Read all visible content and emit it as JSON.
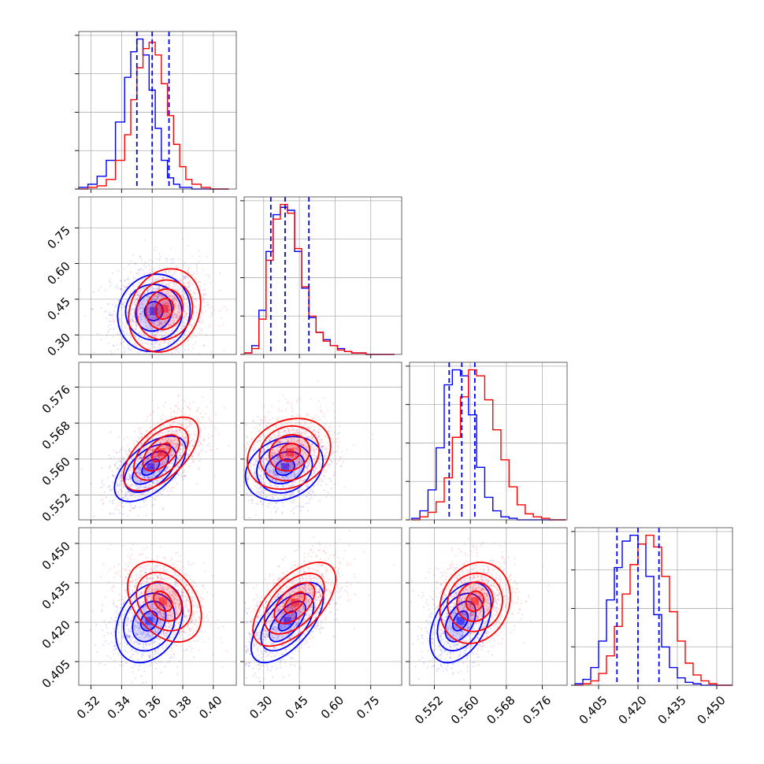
{
  "chart_data": {
    "type": "corner",
    "title": "",
    "grid": true,
    "series": [
      {
        "color": "#0000ff"
      },
      {
        "color": "#ff0000"
      }
    ],
    "params": [
      {
        "range": [
          0.312,
          0.415
        ],
        "ticks": [
          "0.32",
          "0.34",
          "0.36",
          "0.38",
          "0.40"
        ],
        "tick_values": [
          0.32,
          0.34,
          0.36,
          0.38,
          0.4
        ]
      },
      {
        "range": [
          0.218,
          0.88
        ],
        "ticks": [
          "0.30",
          "0.45",
          "0.60",
          "0.75"
        ],
        "tick_values": [
          0.3,
          0.45,
          0.6,
          0.75
        ]
      },
      {
        "range": [
          0.5465,
          0.5815
        ],
        "ticks": [
          "0.552",
          "0.560",
          "0.568",
          "0.576"
        ],
        "tick_values": [
          0.552,
          0.56,
          0.568,
          0.576
        ]
      },
      {
        "range": [
          0.396,
          0.456
        ],
        "ticks": [
          "0.405",
          "0.420",
          "0.435",
          "0.450"
        ],
        "tick_values": [
          0.405,
          0.42,
          0.435,
          0.45
        ]
      }
    ],
    "marginals": [
      {
        "quantiles_series_0": [
          0.35,
          0.36,
          0.371
        ],
        "series": [
          {
            "color": "#0000ff",
            "bins": [
              0.312,
              0.318,
              0.324,
              0.33,
              0.336,
              0.342,
              0.346,
              0.35,
              0.354,
              0.358,
              0.362,
              0.366,
              0.37,
              0.374,
              0.378,
              0.382,
              0.386,
              0.392,
              0.398,
              0.404,
              0.41
            ],
            "counts": [
              1,
              3,
              8,
              18,
              42,
              70,
              86,
              94,
              84,
              62,
              38,
              18,
              7,
              3,
              1,
              1,
              0,
              0,
              0,
              0
            ]
          },
          {
            "color": "#ff0000",
            "bins": [
              0.312,
              0.318,
              0.324,
              0.33,
              0.336,
              0.342,
              0.346,
              0.35,
              0.354,
              0.358,
              0.362,
              0.366,
              0.37,
              0.374,
              0.378,
              0.382,
              0.386,
              0.392,
              0.398,
              0.404,
              0.41
            ],
            "counts": [
              0,
              1,
              2,
              6,
              18,
              34,
              56,
              76,
              88,
              92,
              84,
              66,
              46,
              28,
              14,
              6,
              3,
              1,
              0,
              0
            ]
          }
        ]
      },
      {
        "quantiles_series_0": [
          0.33,
          0.39,
          0.49
        ],
        "series": [
          {
            "color": "#0000ff",
            "bins": [
              0.22,
              0.25,
              0.28,
              0.31,
              0.34,
              0.37,
              0.4,
              0.43,
              0.46,
              0.49,
              0.52,
              0.55,
              0.58,
              0.61,
              0.64,
              0.67,
              0.7,
              0.73,
              0.76,
              0.79,
              0.82,
              0.85
            ],
            "counts": [
              1,
              6,
              30,
              70,
              95,
              100,
              98,
              70,
              45,
              25,
              15,
              10,
              6,
              4,
              2,
              1,
              1,
              0,
              0,
              0,
              0
            ]
          },
          {
            "color": "#ff0000",
            "bins": [
              0.22,
              0.25,
              0.28,
              0.31,
              0.34,
              0.37,
              0.4,
              0.43,
              0.46,
              0.49,
              0.52,
              0.55,
              0.58,
              0.61,
              0.64,
              0.67,
              0.7,
              0.73,
              0.76,
              0.79,
              0.82,
              0.85
            ],
            "counts": [
              1,
              4,
              24,
              64,
              92,
              102,
              96,
              72,
              46,
              26,
              15,
              9,
              6,
              3,
              2,
              1,
              1,
              0,
              0,
              0,
              0
            ]
          }
        ]
      },
      {
        "quantiles_series_0": [
          0.5553,
          0.5581,
          0.561
        ],
        "series": [
          {
            "color": "#0000ff",
            "bins": [
              0.547,
              0.5488,
              0.5506,
              0.5524,
              0.5542,
              0.556,
              0.5578,
              0.5596,
              0.5614,
              0.5632,
              0.565,
              0.5668,
              0.5686,
              0.5704,
              0.5722,
              0.574,
              0.5758,
              0.5776,
              0.5794,
              0.5812
            ],
            "counts": [
              1,
              6,
              20,
              48,
              90,
              100,
              96,
              70,
              35,
              15,
              6,
              2,
              1,
              0,
              0,
              0,
              0,
              0,
              0
            ]
          },
          {
            "color": "#ff0000",
            "bins": [
              0.547,
              0.5488,
              0.5506,
              0.5524,
              0.5542,
              0.556,
              0.5578,
              0.5596,
              0.5614,
              0.5632,
              0.565,
              0.5668,
              0.5686,
              0.5704,
              0.5722,
              0.574,
              0.5758,
              0.5776,
              0.5794,
              0.5812
            ],
            "counts": [
              0,
              2,
              5,
              12,
              28,
              55,
              82,
              100,
              96,
              80,
              60,
              40,
              22,
              10,
              4,
              2,
              1,
              0,
              0
            ]
          }
        ]
      },
      {
        "quantiles_series_0": [
          0.412,
          0.42,
          0.428
        ],
        "series": [
          {
            "color": "#0000ff",
            "bins": [
              0.396,
              0.399,
              0.402,
              0.405,
              0.408,
              0.411,
              0.414,
              0.417,
              0.42,
              0.423,
              0.426,
              0.429,
              0.432,
              0.435,
              0.438,
              0.441,
              0.444,
              0.447,
              0.45,
              0.453,
              0.456
            ],
            "counts": [
              1,
              4,
              12,
              30,
              58,
              80,
              98,
              102,
              96,
              74,
              48,
              26,
              12,
              5,
              2,
              1,
              0,
              0,
              0,
              0
            ]
          },
          {
            "color": "#ff0000",
            "bins": [
              0.396,
              0.399,
              0.402,
              0.405,
              0.408,
              0.411,
              0.414,
              0.417,
              0.42,
              0.423,
              0.426,
              0.429,
              0.432,
              0.435,
              0.438,
              0.441,
              0.444,
              0.447,
              0.45,
              0.453,
              0.456
            ],
            "counts": [
              0,
              1,
              3,
              8,
              20,
              40,
              62,
              82,
              96,
              102,
              94,
              74,
              50,
              30,
              15,
              7,
              3,
              1,
              0,
              0
            ]
          }
        ]
      }
    ],
    "pairs": [
      {
        "x": 0,
        "y": 1,
        "series": [
          {
            "color": "#0000ff",
            "center": [
              0.361,
              0.4
            ],
            "sd": [
              0.012,
              0.08
            ],
            "corr": 0.05
          },
          {
            "color": "#ff0000",
            "center": [
              0.368,
              0.41
            ],
            "sd": [
              0.012,
              0.085
            ],
            "corr": 0.12
          }
        ]
      },
      {
        "x": 0,
        "y": 2,
        "series": [
          {
            "color": "#0000ff",
            "center": [
              0.359,
              0.5582
            ],
            "sd": [
              0.0115,
              0.0036
            ],
            "corr": 0.55
          },
          {
            "color": "#ff0000",
            "center": [
              0.366,
              0.5615
            ],
            "sd": [
              0.012,
              0.004
            ],
            "corr": 0.55
          }
        ]
      },
      {
        "x": 1,
        "y": 2,
        "series": [
          {
            "color": "#0000ff",
            "center": [
              0.39,
              0.5582
            ],
            "sd": [
              0.08,
              0.0036
            ],
            "corr": 0.2
          },
          {
            "color": "#ff0000",
            "center": [
              0.41,
              0.5615
            ],
            "sd": [
              0.085,
              0.004
            ],
            "corr": 0.15
          }
        ]
      },
      {
        "x": 0,
        "y": 3,
        "series": [
          {
            "color": "#0000ff",
            "center": [
              0.358,
              0.4205
            ],
            "sd": [
              0.011,
              0.0075
            ],
            "corr": 0.25
          },
          {
            "color": "#ff0000",
            "center": [
              0.367,
              0.428
            ],
            "sd": [
              0.012,
              0.0075
            ],
            "corr": -0.3
          }
        ]
      },
      {
        "x": 1,
        "y": 3,
        "series": [
          {
            "color": "#0000ff",
            "center": [
              0.4,
              0.4205
            ],
            "sd": [
              0.075,
              0.0075
            ],
            "corr": 0.6
          },
          {
            "color": "#ff0000",
            "center": [
              0.43,
              0.4275
            ],
            "sd": [
              0.085,
              0.0078
            ],
            "corr": 0.55
          }
        ]
      },
      {
        "x": 2,
        "y": 3,
        "series": [
          {
            "color": "#0000ff",
            "center": [
              0.5578,
              0.4205
            ],
            "sd": [
              0.0034,
              0.0075
            ],
            "corr": 0.4
          },
          {
            "color": "#ff0000",
            "center": [
              0.561,
              0.428
            ],
            "sd": [
              0.004,
              0.0075
            ],
            "corr": 0.1
          }
        ]
      }
    ]
  }
}
